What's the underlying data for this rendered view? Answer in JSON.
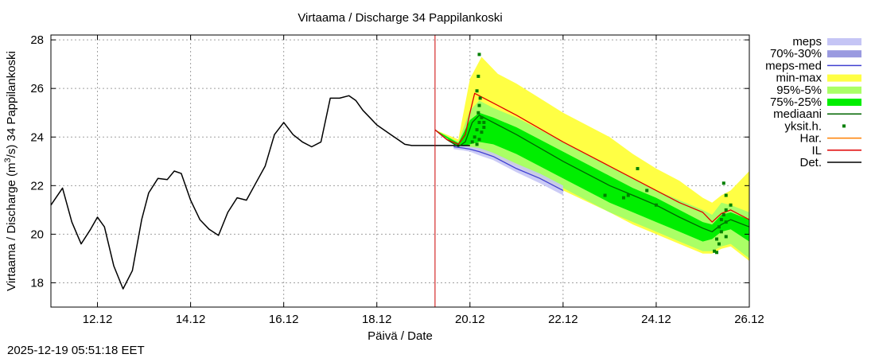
{
  "chart_data": {
    "type": "line",
    "title": "Virtaama / Discharge  34 Pappilankoski",
    "xlabel": "Päivä / Date",
    "ylabel_prefix": "Virtaama / Discharge (m",
    "ylabel_sup": "3",
    "ylabel_suffix": "/s)  34 Pappilankoski",
    "timestamp": "2025-12-19 05:51:18 EET",
    "x_unit": "days since 2025-12-11 00:00",
    "xlim": [
      0,
      15
    ],
    "ylim": [
      17,
      28.2
    ],
    "x_ticks": [
      {
        "x": 1,
        "label": "12.12"
      },
      {
        "x": 3,
        "label": "14.12"
      },
      {
        "x": 5,
        "label": "16.12"
      },
      {
        "x": 7,
        "label": "18.12"
      },
      {
        "x": 9,
        "label": "20.12"
      },
      {
        "x": 11,
        "label": "22.12"
      },
      {
        "x": 13,
        "label": "24.12"
      },
      {
        "x": 15,
        "label": "26.12"
      }
    ],
    "y_ticks": [
      {
        "y": 18,
        "label": "18"
      },
      {
        "y": 20,
        "label": "20"
      },
      {
        "y": 22,
        "label": "22"
      },
      {
        "y": 24,
        "label": "24"
      },
      {
        "y": 26,
        "label": "26"
      },
      {
        "y": 28,
        "label": "28"
      }
    ],
    "forecast_start_x": 8.25,
    "grid": true,
    "legend_position": "right",
    "legend": [
      {
        "key": "meps",
        "label": "meps",
        "style": "box",
        "color": "#c5c5f5"
      },
      {
        "key": "p70_30",
        "label": "70%-30%",
        "style": "box",
        "color": "#9a9ae0"
      },
      {
        "key": "meps_med",
        "label": "meps-med",
        "style": "line",
        "color": "#4040d0"
      },
      {
        "key": "minmax",
        "label": "min-max",
        "style": "box",
        "color": "#ffff44"
      },
      {
        "key": "p95_5",
        "label": "95%-5%",
        "style": "box",
        "color": "#aaff66"
      },
      {
        "key": "p75_25",
        "label": "75%-25%",
        "style": "box",
        "color": "#00ee00"
      },
      {
        "key": "mediaani",
        "label": "mediaani",
        "style": "line",
        "color": "#006400"
      },
      {
        "key": "yksit",
        "label": "yksit.h.",
        "style": "dot",
        "color": "#008000"
      },
      {
        "key": "har",
        "label": "Har.",
        "style": "line",
        "color": "#ff8000"
      },
      {
        "key": "il",
        "label": "IL",
        "style": "line",
        "color": "#e00000"
      },
      {
        "key": "det",
        "label": "Det.",
        "style": "line",
        "color": "#000000"
      }
    ],
    "series": [
      {
        "name": "Det.",
        "x": [
          0,
          0.25,
          0.45,
          0.65,
          0.85,
          1.0,
          1.15,
          1.35,
          1.55,
          1.75,
          1.95,
          2.1,
          2.3,
          2.5,
          2.65,
          2.8,
          3.0,
          3.2,
          3.4,
          3.6,
          3.8,
          4.0,
          4.2,
          4.4,
          4.6,
          4.8,
          5.0,
          5.2,
          5.4,
          5.6,
          5.8,
          6.0,
          6.2,
          6.4,
          6.55,
          6.7,
          6.85,
          7.0,
          7.15,
          7.3,
          7.45,
          7.6,
          7.75,
          7.9,
          8.1,
          8.25,
          8.45,
          8.65,
          8.85,
          9.0
        ],
        "y": [
          21.2,
          21.9,
          20.5,
          19.6,
          20.2,
          20.7,
          20.3,
          18.7,
          17.75,
          18.5,
          20.6,
          21.7,
          22.3,
          22.25,
          22.6,
          22.5,
          21.4,
          20.6,
          20.2,
          19.95,
          20.9,
          21.5,
          21.4,
          22.1,
          22.8,
          24.1,
          24.6,
          24.1,
          23.8,
          23.6,
          23.8,
          25.6,
          25.6,
          25.7,
          25.5,
          25.1,
          24.8,
          24.5,
          24.3,
          24.1,
          23.9,
          23.7,
          23.65,
          23.65,
          23.65,
          23.65,
          23.65,
          23.65,
          23.65,
          23.65
        ]
      },
      {
        "name": "mediaani",
        "x": [
          8.25,
          8.5,
          8.75,
          8.9,
          9.05,
          9.2,
          9.4,
          9.6,
          10.0,
          11.0,
          12.0,
          12.5,
          13.0,
          13.5,
          14.0,
          14.2,
          14.4,
          14.6,
          15.0
        ],
        "y": [
          24.3,
          23.9,
          23.6,
          23.8,
          24.6,
          24.9,
          24.7,
          24.5,
          24.1,
          23.0,
          22.0,
          21.6,
          21.2,
          20.7,
          20.25,
          20.1,
          20.4,
          20.6,
          20.3
        ]
      },
      {
        "name": "IL",
        "x": [
          8.25,
          8.5,
          8.75,
          8.9,
          9.0,
          9.1,
          9.3,
          9.6,
          10.0,
          11.0,
          12.0,
          12.5,
          13.0,
          13.5,
          14.0,
          14.2,
          14.4,
          14.6,
          15.0
        ],
        "y": [
          24.3,
          23.9,
          23.7,
          24.1,
          25.0,
          25.8,
          25.6,
          25.3,
          24.9,
          23.8,
          22.8,
          22.3,
          21.8,
          21.3,
          20.9,
          20.5,
          20.85,
          21.0,
          20.6
        ]
      },
      {
        "name": "meps-med",
        "x": [
          8.65,
          8.85,
          9.0,
          9.2,
          9.5,
          10.0,
          10.5,
          11.0
        ],
        "y": [
          23.6,
          23.55,
          23.5,
          23.4,
          23.2,
          22.7,
          22.3,
          21.8
        ]
      }
    ],
    "bands": [
      {
        "name": "min-max",
        "x": [
          8.25,
          8.75,
          9.0,
          9.25,
          9.6,
          10.0,
          11.0,
          12.0,
          12.5,
          13.0,
          13.5,
          14.0,
          14.2,
          14.4,
          14.6,
          15.0
        ],
        "upper": [
          24.3,
          23.9,
          26.4,
          27.3,
          26.6,
          26.2,
          25.0,
          24.0,
          23.3,
          22.7,
          22.2,
          21.5,
          21.3,
          21.6,
          21.8,
          22.6
        ],
        "lower": [
          24.3,
          23.6,
          23.6,
          23.4,
          23.1,
          22.8,
          21.8,
          20.9,
          20.4,
          20.0,
          19.6,
          19.2,
          19.2,
          19.4,
          19.5,
          18.9
        ]
      },
      {
        "name": "95%-5%",
        "x": [
          8.25,
          8.75,
          9.0,
          9.2,
          9.5,
          10.0,
          11.0,
          12.0,
          12.5,
          13.0,
          13.5,
          14.0,
          14.2,
          14.4,
          14.6,
          15.0
        ],
        "upper": [
          24.3,
          23.8,
          25.1,
          25.5,
          25.2,
          24.8,
          23.8,
          22.8,
          22.3,
          21.8,
          21.4,
          21.0,
          20.8,
          21.3,
          21.2,
          20.9
        ],
        "lower": [
          24.3,
          23.6,
          23.6,
          23.5,
          23.3,
          22.9,
          21.9,
          20.9,
          20.5,
          20.1,
          19.7,
          19.3,
          19.3,
          19.5,
          19.6,
          19.0
        ]
      },
      {
        "name": "75%-25%",
        "x": [
          8.25,
          8.75,
          9.0,
          9.2,
          9.5,
          10.0,
          11.0,
          12.0,
          12.5,
          13.0,
          13.5,
          14.0,
          14.2,
          14.4,
          14.6,
          15.0
        ],
        "upper": [
          24.3,
          23.75,
          24.7,
          25.0,
          24.8,
          24.4,
          23.4,
          22.4,
          21.9,
          21.5,
          21.0,
          20.5,
          20.4,
          20.8,
          20.9,
          20.6
        ],
        "lower": [
          24.3,
          23.6,
          23.7,
          23.8,
          23.7,
          23.3,
          22.3,
          21.3,
          20.9,
          20.5,
          20.1,
          19.7,
          19.8,
          20.1,
          20.2,
          19.7
        ]
      },
      {
        "name": "meps",
        "x": [
          8.65,
          8.85,
          9.0,
          9.2,
          9.5,
          10.0,
          10.5,
          11.0
        ],
        "upper": [
          23.65,
          23.65,
          23.6,
          23.55,
          23.35,
          22.9,
          22.5,
          22.0
        ],
        "lower": [
          23.5,
          23.45,
          23.4,
          23.25,
          23.05,
          22.55,
          22.1,
          21.6
        ]
      }
    ],
    "yksit_points": [
      [
        9.2,
        27.4
      ],
      [
        9.18,
        26.5
      ],
      [
        9.15,
        25.9
      ],
      [
        9.22,
        25.6
      ],
      [
        9.2,
        25.3
      ],
      [
        9.18,
        25.0
      ],
      [
        9.25,
        24.8
      ],
      [
        9.2,
        24.6
      ],
      [
        9.3,
        24.4
      ],
      [
        9.15,
        24.3
      ],
      [
        9.25,
        24.2
      ],
      [
        9.1,
        24.0
      ],
      [
        9.2,
        23.9
      ],
      [
        9.05,
        23.8
      ],
      [
        9.15,
        23.7
      ],
      [
        9.3,
        24.6
      ],
      [
        12.6,
        22.7
      ],
      [
        12.4,
        21.6
      ],
      [
        12.8,
        21.8
      ],
      [
        11.9,
        21.6
      ],
      [
        12.3,
        21.5
      ],
      [
        13.0,
        21.2
      ],
      [
        14.45,
        22.1
      ],
      [
        14.5,
        21.6
      ],
      [
        14.6,
        21.2
      ],
      [
        14.5,
        21.0
      ],
      [
        14.45,
        20.8
      ],
      [
        14.4,
        20.6
      ],
      [
        14.5,
        20.5
      ],
      [
        14.35,
        20.3
      ],
      [
        14.4,
        20.1
      ],
      [
        14.3,
        19.8
      ],
      [
        14.35,
        19.6
      ],
      [
        14.25,
        19.3
      ],
      [
        14.3,
        19.25
      ],
      [
        14.5,
        19.9
      ]
    ]
  }
}
